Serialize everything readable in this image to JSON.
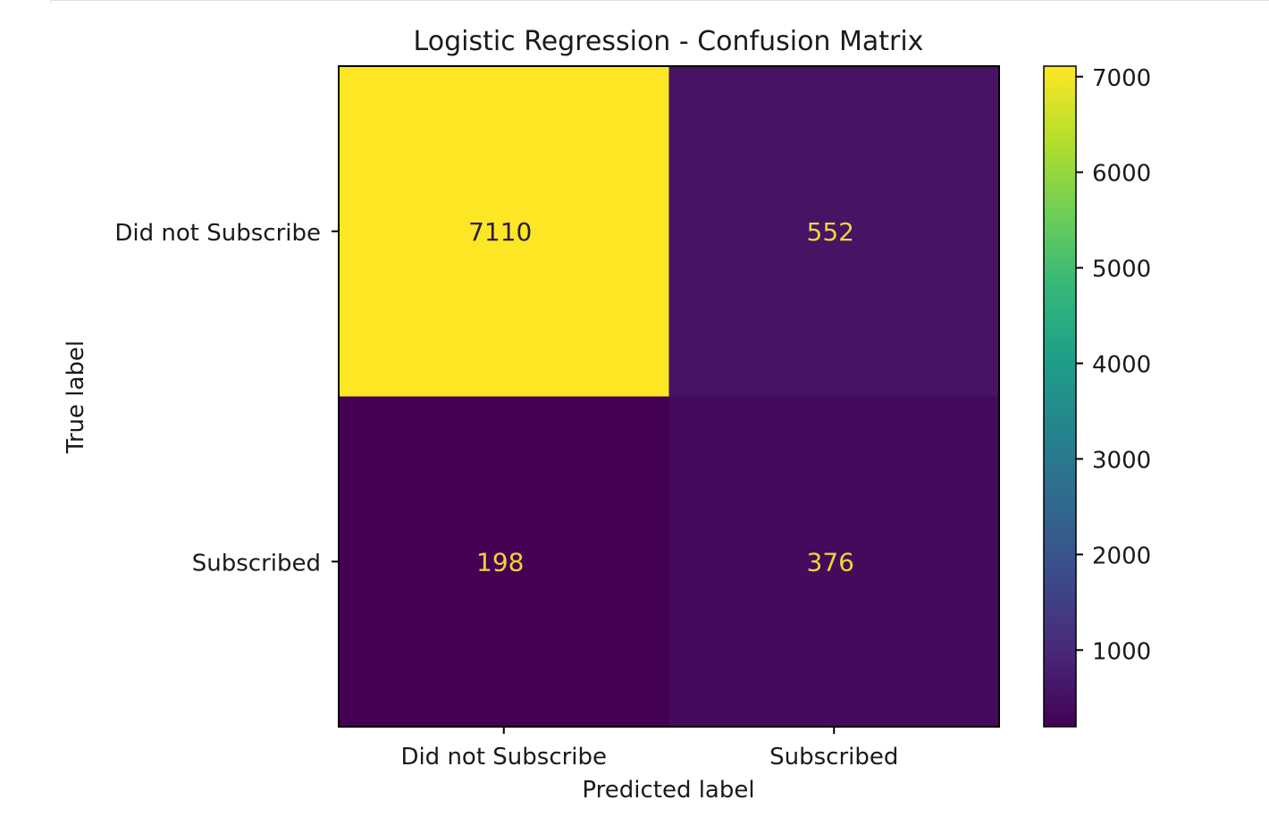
{
  "chart_data": {
    "type": "heatmap",
    "title": "Logistic Regression - Confusion Matrix",
    "xlabel": "Predicted label",
    "ylabel": "True label",
    "x_categories": [
      "Did not Subscribe",
      "Subscribed"
    ],
    "y_categories": [
      "Did not Subscribe",
      "Subscribed"
    ],
    "values": [
      [
        7110,
        552
      ],
      [
        198,
        376
      ]
    ],
    "colormap": "viridis",
    "colorbar": {
      "ticks": [
        1000,
        2000,
        3000,
        4000,
        5000,
        6000,
        7000
      ],
      "range": [
        198,
        7110
      ]
    },
    "text_colors": {
      "low": "#f0d43a",
      "high": "#2d1b46"
    },
    "grid": false,
    "legend": "colorbar-right"
  }
}
